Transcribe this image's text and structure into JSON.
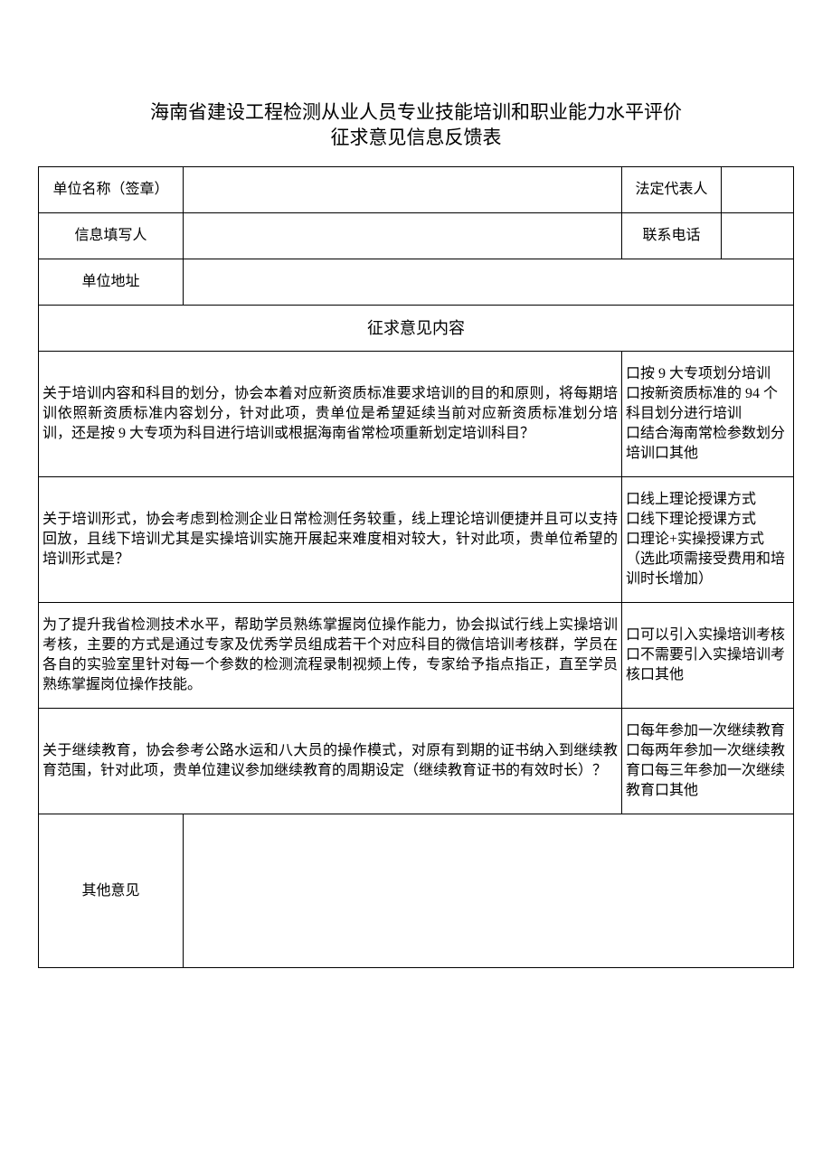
{
  "title_line1": "海南省建设工程检测从业人员专业技能培训和职业能力水平评价",
  "title_line2": "征求意见信息反馈表",
  "header_rows": {
    "unit_name_label": "单位名称（签章）",
    "legal_rep_label": "法定代表人",
    "filler_label": "信息填写人",
    "phone_label": "联系电话",
    "address_label": "单位地址"
  },
  "section_header": "征求意见内容",
  "questions": [
    {
      "text": "关于培训内容和科目的划分，协会本着对应新资质标准要求培训的目的和原则，将每期培训依照新资质标准内容划分，针对此项，贵单位是希望延续当前对应新资质标准划分培训，还是按 9 大专项为科目进行培训或根据海南省常检项重新划定培训科目？",
      "options": "口按 9 大专项划分培训\n口按新资质标准的 94 个科目划分进行培训\n口结合海南常检参数划分培训口其他"
    },
    {
      "text": "关于培训形式，协会考虑到检测企业日常检测任务较重，线上理论培训便捷并且可以支持回放，且线下培训尤其是实操培训实施开展起来难度相对较大，针对此项，贵单位希望的培训形式是？",
      "options": "口线上理论授课方式\n口线下理论授课方式\n口理论+实操授课方式（选此项需接受费用和培训时长增加）"
    },
    {
      "text": "为了提升我省检测技术水平，帮助学员熟练掌握岗位操作能力，协会拟试行线上实操培训考核，主要的方式是通过专家及优秀学员组成若干个对应科目的微信培训考核群，学员在各自的实验室里针对每一个参数的检测流程录制视频上传，专家给予指点指正，直至学员熟练掌握岗位操作技能。",
      "options": "口可以引入实操培训考核口不需要引入实操培训考核口其他"
    },
    {
      "text": "关于继续教育，协会参考公路水运和八大员的操作模式，对原有到期的证书纳入到继续教育范围，针对此项，贵单位建议参加继续教育的周期设定（继续教育证书的有效时长）？",
      "options": "口每年参加一次继续教育口每两年参加一次继续教育口每三年参加一次继续教育口其他"
    }
  ],
  "other_opinion_label": "其他意见",
  "colors": {
    "background": "#ffffff",
    "border": "#000000",
    "text": "#000000"
  },
  "typography": {
    "title_fontsize": 21,
    "body_fontsize": 16,
    "section_fontsize": 18
  }
}
